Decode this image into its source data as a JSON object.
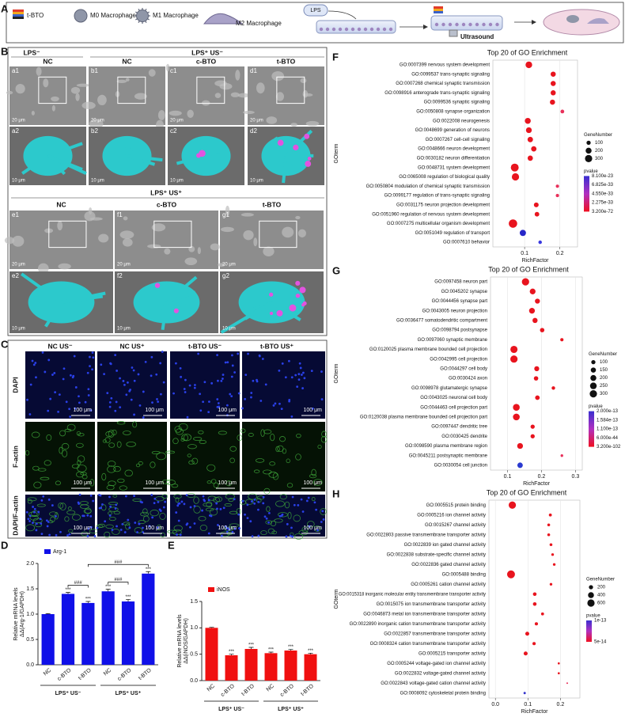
{
  "panel_labels": [
    "A",
    "B",
    "C",
    "D",
    "E",
    "F",
    "G",
    "H"
  ],
  "panel_a": {
    "legend": [
      "t-BTO",
      "M0 Macrophage",
      "M1 Macrophage",
      "M2 Macrophage"
    ],
    "steps": [
      "LPS",
      "Ultrasound"
    ]
  },
  "panel_b": {
    "top_groups": [
      "LPS⁻",
      "LPS⁺ US⁻"
    ],
    "top_columns": [
      "NC",
      "NC",
      "c-BTO",
      "t-BTO"
    ],
    "top_tags_1": [
      "a1",
      "b1",
      "c1",
      "d1"
    ],
    "top_tags_2": [
      "a2",
      "b2",
      "c2",
      "d2"
    ],
    "scale_1": "20 μm",
    "scale_2": "10 μm",
    "bottom_group": "LPS⁺ US⁺",
    "bottom_columns": [
      "NC",
      "c-BTO",
      "t-BTO"
    ],
    "bottom_tags_1": [
      "e1",
      "f1",
      "g1"
    ],
    "bottom_tags_2": [
      "e2",
      "f2",
      "g2"
    ]
  },
  "panel_c": {
    "columns": [
      "NC US⁻",
      "NC US⁺",
      "t-BTO US⁻",
      "t-BTO US⁺"
    ],
    "rows": [
      "DAPI",
      "F-actin",
      "DAPI/F-actin"
    ],
    "scale": "100 μm"
  },
  "chart_data": [
    {
      "type": "bar",
      "ylabel": [
        "Relative mRNA levels",
        "ΔΔ(Arg-1/GAPDH)"
      ],
      "categories": [
        "NC",
        "c-BTO",
        "t-BTO",
        "NC",
        "c-BTO",
        "t-BTO"
      ],
      "group_labels": [
        "LPS⁺ US⁻",
        "LPS⁺ US⁺"
      ],
      "series": [
        {
          "name": "Arg-1",
          "color": "#1010e8",
          "values": [
            1.0,
            1.4,
            1.22,
            1.45,
            1.25,
            1.8
          ],
          "errors": [
            0.01,
            0.03,
            0.03,
            0.04,
            0.04,
            0.04
          ]
        }
      ],
      "significance": [
        null,
        "***",
        "***",
        "***",
        "***",
        "***"
      ],
      "brackets": [
        {
          "from": 1,
          "to": 2,
          "label": "###"
        },
        {
          "from": 3,
          "to": 4,
          "label": "###"
        },
        {
          "from": 2,
          "to": 5,
          "label": "###"
        }
      ],
      "ylim": [
        0,
        2
      ],
      "yticks": [
        {
          "value": 0,
          "label": "0.0"
        },
        {
          "value": 0.5,
          "label": "0.5"
        },
        {
          "value": 1,
          "label": "1.0"
        },
        {
          "value": 1.5,
          "label": "1.5"
        },
        {
          "value": 2,
          "label": "2.0"
        }
      ]
    },
    {
      "type": "bar",
      "ylabel": [
        "Relative mRNA levels",
        "ΔΔ(iNOS/GAPDH)"
      ],
      "categories": [
        "NC",
        "c-BTO",
        "t-BTO",
        "NC",
        "c-BTO",
        "t-BTO"
      ],
      "group_labels": [
        "LPS⁺ US⁻",
        "LPS⁺ US⁺"
      ],
      "series": [
        {
          "name": "iNOS",
          "color": "#f01010",
          "values": [
            1.0,
            0.48,
            0.6,
            0.52,
            0.57,
            0.5
          ],
          "errors": [
            0.01,
            0.02,
            0.03,
            0.02,
            0.02,
            0.02
          ]
        }
      ],
      "significance": [
        null,
        "***",
        "***",
        "***",
        "***",
        "***"
      ],
      "brackets": [],
      "ylim": [
        0,
        1.5
      ],
      "yticks": [
        {
          "value": 0,
          "label": "0.0"
        },
        {
          "value": 0.5,
          "label": "0.5"
        },
        {
          "value": 1,
          "label": "1.0"
        },
        {
          "value": 1.5,
          "label": "1.5"
        }
      ]
    },
    {
      "type": "dot",
      "title": "Top 20 of GO Enrichment",
      "xlabel": "RichFactor",
      "ylabel": "GOterm",
      "grid": true,
      "categories": [
        "GO:0007399 nervous system development",
        "GO:0099537 trans-synaptic signaling",
        "GO:0007268 chemical synaptic transmission",
        "GO:0098916 anterograde trans-synaptic signaling",
        "GO:0099536 synaptic signaling",
        "GO:0050808 synapse organization",
        "GO:0022008 neurogenesis",
        "GO:0048699 generation of neurons",
        "GO:0007267 cell-cell signaling",
        "GO:0048666 neuron development",
        "GO:0030182 neuron differentiation",
        "GO:0048731 system development",
        "GO:0065008 regulation of biological quality",
        "GO:0050804 modulation of chemical synaptic transmission",
        "GO:0099177 regulation of trans-synaptic signaling",
        "GO:0031175 neuron projection development",
        "GO:0051960 regulation of nervous system development",
        "GO:0007275 multicellular organism development",
        "GO:0051049 regulation of transport",
        "GO:0007610 behavior"
      ],
      "values": [
        0.112,
        0.181,
        0.181,
        0.181,
        0.179,
        0.207,
        0.109,
        0.112,
        0.116,
        0.126,
        0.116,
        0.072,
        0.074,
        0.193,
        0.193,
        0.133,
        0.135,
        0.067,
        0.095,
        0.144
      ],
      "sizes": [
        250,
        150,
        150,
        150,
        150,
        80,
        200,
        190,
        170,
        160,
        160,
        350,
        300,
        60,
        60,
        130,
        120,
        400,
        220,
        70
      ],
      "colors": [
        "#e8141e",
        "#e8141e",
        "#e8141e",
        "#e8141e",
        "#e8141e",
        "#e8305a",
        "#e8141e",
        "#e8141e",
        "#e8141e",
        "#e8141e",
        "#e8141e",
        "#e8141e",
        "#e8141e",
        "#e8305a",
        "#e8305a",
        "#e8141e",
        "#e8141e",
        "#e8141e",
        "#2626c8",
        "#3a3adf"
      ],
      "xlim": [
        0.01,
        0.25
      ],
      "xticks": [
        0.1,
        0.2
      ],
      "size_legend": {
        "title": "GeneNumber",
        "values": [
          100,
          200,
          300
        ]
      },
      "color_legend": {
        "title": "pvalue",
        "labels": [
          "8.100e-23",
          "6.825e-33",
          "4.550e-33",
          "2.275e-33",
          "3.200e-72"
        ]
      }
    },
    {
      "type": "dot",
      "title": "Top 20 of GO Enrichment",
      "xlabel": "RichFactor",
      "ylabel": "GOterm",
      "grid": true,
      "categories": [
        "GO:0097458 neuron part",
        "GO:0045202 synapse",
        "GO:0044456 synapse part",
        "GO:0043005 neuron projection",
        "GO:0036477 somatodendritic compartment",
        "GO:0098794 postsynapse",
        "GO:0097060 synaptic membrane",
        "GO:0120025 plasma membrane bounded cell projection",
        "GO:0042995 cell projection",
        "GO:0044297 cell body",
        "GO:0030424 axon",
        "GO:0098978 glutamatergic synapse",
        "GO:0043025 neuronal cell body",
        "GO:0044463 cell projection part",
        "GO:0120038 plasma membrane bounded cell projection part",
        "GO:0097447 dendritic tree",
        "GO:0030425 dendrite",
        "GO:0098590 plasma membrane region",
        "GO:0045211 postsynaptic membrane",
        "GO:0030054 cell junction"
      ],
      "values": [
        0.153,
        0.174,
        0.188,
        0.172,
        0.181,
        0.202,
        0.26,
        0.119,
        0.119,
        0.186,
        0.184,
        0.235,
        0.188,
        0.126,
        0.126,
        0.174,
        0.174,
        0.137,
        0.26,
        0.137
      ],
      "sizes": [
        300,
        190,
        140,
        190,
        150,
        110,
        60,
        290,
        300,
        140,
        110,
        70,
        120,
        260,
        260,
        100,
        100,
        190,
        40,
        170
      ],
      "colors": [
        "#e8141e",
        "#e8141e",
        "#e8141e",
        "#e8141e",
        "#e8141e",
        "#e8141e",
        "#e8141e",
        "#e8141e",
        "#e8141e",
        "#e8141e",
        "#e8141e",
        "#e8141e",
        "#e8141e",
        "#e8141e",
        "#e8141e",
        "#e8141e",
        "#e8141e",
        "#e8141e",
        "#e8305a",
        "#2a3ad0"
      ],
      "xlim": [
        0.05,
        0.32
      ],
      "xticks": [
        0.1,
        0.2,
        0.3
      ],
      "size_legend": {
        "title": "GeneNumber",
        "values": [
          100,
          150,
          200,
          250,
          300
        ]
      },
      "color_legend": {
        "title": "pvalue",
        "labels": [
          "2.000e-13",
          "1.584e-13",
          "1.100e-13",
          "6.000e-44",
          "3.200e-102"
        ]
      }
    },
    {
      "type": "dot",
      "title": "Top 20 of GO Enrichment",
      "xlabel": "RichFactor",
      "ylabel": "GOterm",
      "grid": true,
      "categories": [
        "GO:0005515 protein binding",
        "GO:0005216 ion channel activity",
        "GO:0015267 channel activity",
        "GO:0022803 passive transmembrane transporter activity",
        "GO:0022839 ion gated channel activity",
        "GO:0022838 substrate-specific channel activity",
        "GO:0022836 gated channel activity",
        "GO:0005488 binding",
        "GO:0005261 cation channel activity",
        "GO:0015318 inorganic molecular entity transmembrane transporter activity",
        "GO:0015075 ion transmembrane transporter activity",
        "GO:0046873 metal ion transmembrane transporter activity",
        "GO:0022890 inorganic cation transmembrane transporter activity",
        "GO:0022857 transmembrane transporter activity",
        "GO:0008324 cation transmembrane transporter activity",
        "GO:0005215 transporter activity",
        "GO:0005244 voltage-gated ion channel activity",
        "GO:0022832 voltage-gated channel activity",
        "GO:0022843 voltage-gated cation channel activity",
        "GO:0008092 cytoskeletal protein binding"
      ],
      "values": [
        0.052,
        0.169,
        0.164,
        0.164,
        0.171,
        0.176,
        0.181,
        0.048,
        0.171,
        0.121,
        0.121,
        0.145,
        0.126,
        0.098,
        0.119,
        0.093,
        0.195,
        0.195,
        0.221,
        0.09
      ],
      "sizes": [
        600,
        100,
        90,
        90,
        90,
        80,
        80,
        700,
        80,
        150,
        150,
        100,
        120,
        180,
        120,
        180,
        50,
        50,
        30,
        60
      ],
      "colors": [
        "#e8141e",
        "#e8141e",
        "#e8141e",
        "#e8141e",
        "#e8141e",
        "#e8141e",
        "#e8141e",
        "#e8141e",
        "#e8141e",
        "#e8141e",
        "#e8141e",
        "#e8141e",
        "#e8141e",
        "#e8141e",
        "#e8141e",
        "#e8141e",
        "#e8141e",
        "#e8141e",
        "#e8305a",
        "#3333cc"
      ],
      "label_colors": [
        "#222222",
        "#e00000",
        "#e00000",
        "#e00000",
        "#e00000",
        "#e00000",
        "#e00000",
        "#222222",
        "#e00000",
        "#e00000",
        "#e00000",
        "#e00000",
        "#e00000",
        "#e00000",
        "#e00000",
        "#e00000",
        "#e00000",
        "#e00000",
        "#e00000",
        "#222222"
      ],
      "xlim": [
        -0.02,
        0.26
      ],
      "xticks": [
        {
          "value": 0,
          "label": "0.0"
        },
        0.1,
        0.2
      ],
      "size_legend": {
        "title": "GeneNumber",
        "values": [
          200,
          400,
          600
        ]
      },
      "color_legend": {
        "title": "pvalue",
        "labels": [
          "1e-13",
          "5e-14"
        ]
      }
    }
  ]
}
